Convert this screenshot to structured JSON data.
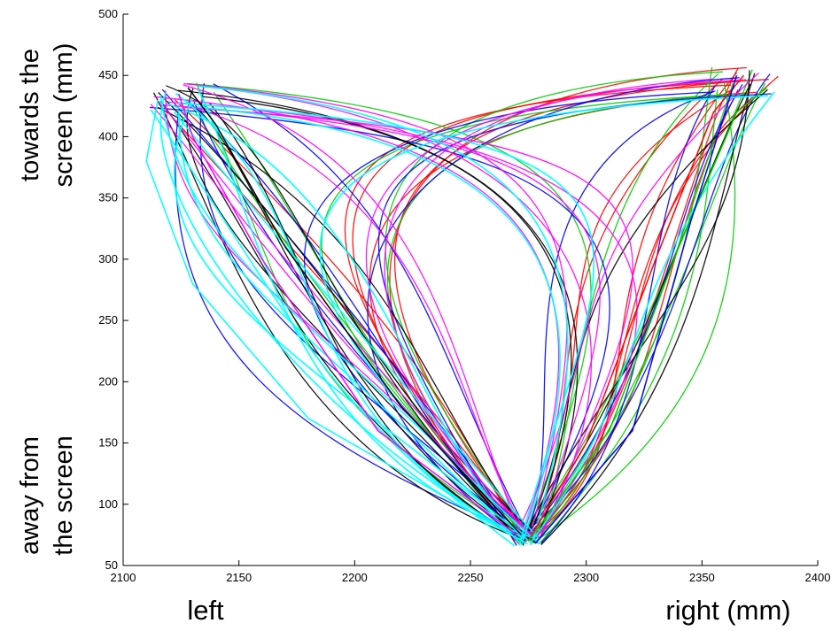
{
  "chart_data": {
    "type": "line",
    "title": "",
    "xlim": [
      2100,
      2400
    ],
    "ylim": [
      50,
      500
    ],
    "x_ticks": [
      2100,
      2150,
      2200,
      2250,
      2300,
      2350,
      2400
    ],
    "y_ticks": [
      50,
      100,
      150,
      200,
      250,
      300,
      350,
      400,
      450,
      500
    ],
    "grid": false,
    "legend": "none",
    "labels": {
      "top_left": [
        "towards the",
        "screen (mm)"
      ],
      "bottom_left": [
        "away from",
        "the screen"
      ],
      "x_left": "left",
      "x_right": "right (mm)"
    },
    "start_point": [
      2275,
      70
    ],
    "left_target": [
      2125,
      432
    ],
    "right_target": [
      2368,
      445
    ],
    "trajectory_colors": [
      "#ff0000",
      "#00cc00",
      "#0000ff",
      "#000000",
      "#ff00ff",
      "#00ffff"
    ],
    "trajectories_per_color": 14,
    "series": [
      {
        "name": "",
        "color": "#ff0000",
        "x": [
          2275,
          2300,
          2330,
          2355,
          2368
        ],
        "y": [
          70,
          150,
          300,
          420,
          450
        ]
      },
      {
        "name": "",
        "color": "#00cc00",
        "x": [
          2275,
          2310,
          2340,
          2365,
          2378
        ],
        "y": [
          70,
          160,
          310,
          420,
          440
        ]
      },
      {
        "name": "",
        "color": "#0000ff",
        "x": [
          2278,
          2320,
          2345,
          2360,
          2365
        ],
        "y": [
          68,
          160,
          330,
          420,
          450
        ]
      },
      {
        "name": "",
        "color": "#000000",
        "x": [
          2272,
          2220,
          2170,
          2140,
          2128
        ],
        "y": [
          75,
          180,
          310,
          410,
          440
        ]
      },
      {
        "name": "",
        "color": "#ff00ff",
        "x": [
          2270,
          2210,
          2160,
          2130,
          2124
        ],
        "y": [
          75,
          160,
          300,
          400,
          435
        ]
      },
      {
        "name": "",
        "color": "#00ffff",
        "x": [
          2272,
          2180,
          2130,
          2110,
          2115
        ],
        "y": [
          70,
          170,
          280,
          380,
          430
        ]
      }
    ]
  }
}
